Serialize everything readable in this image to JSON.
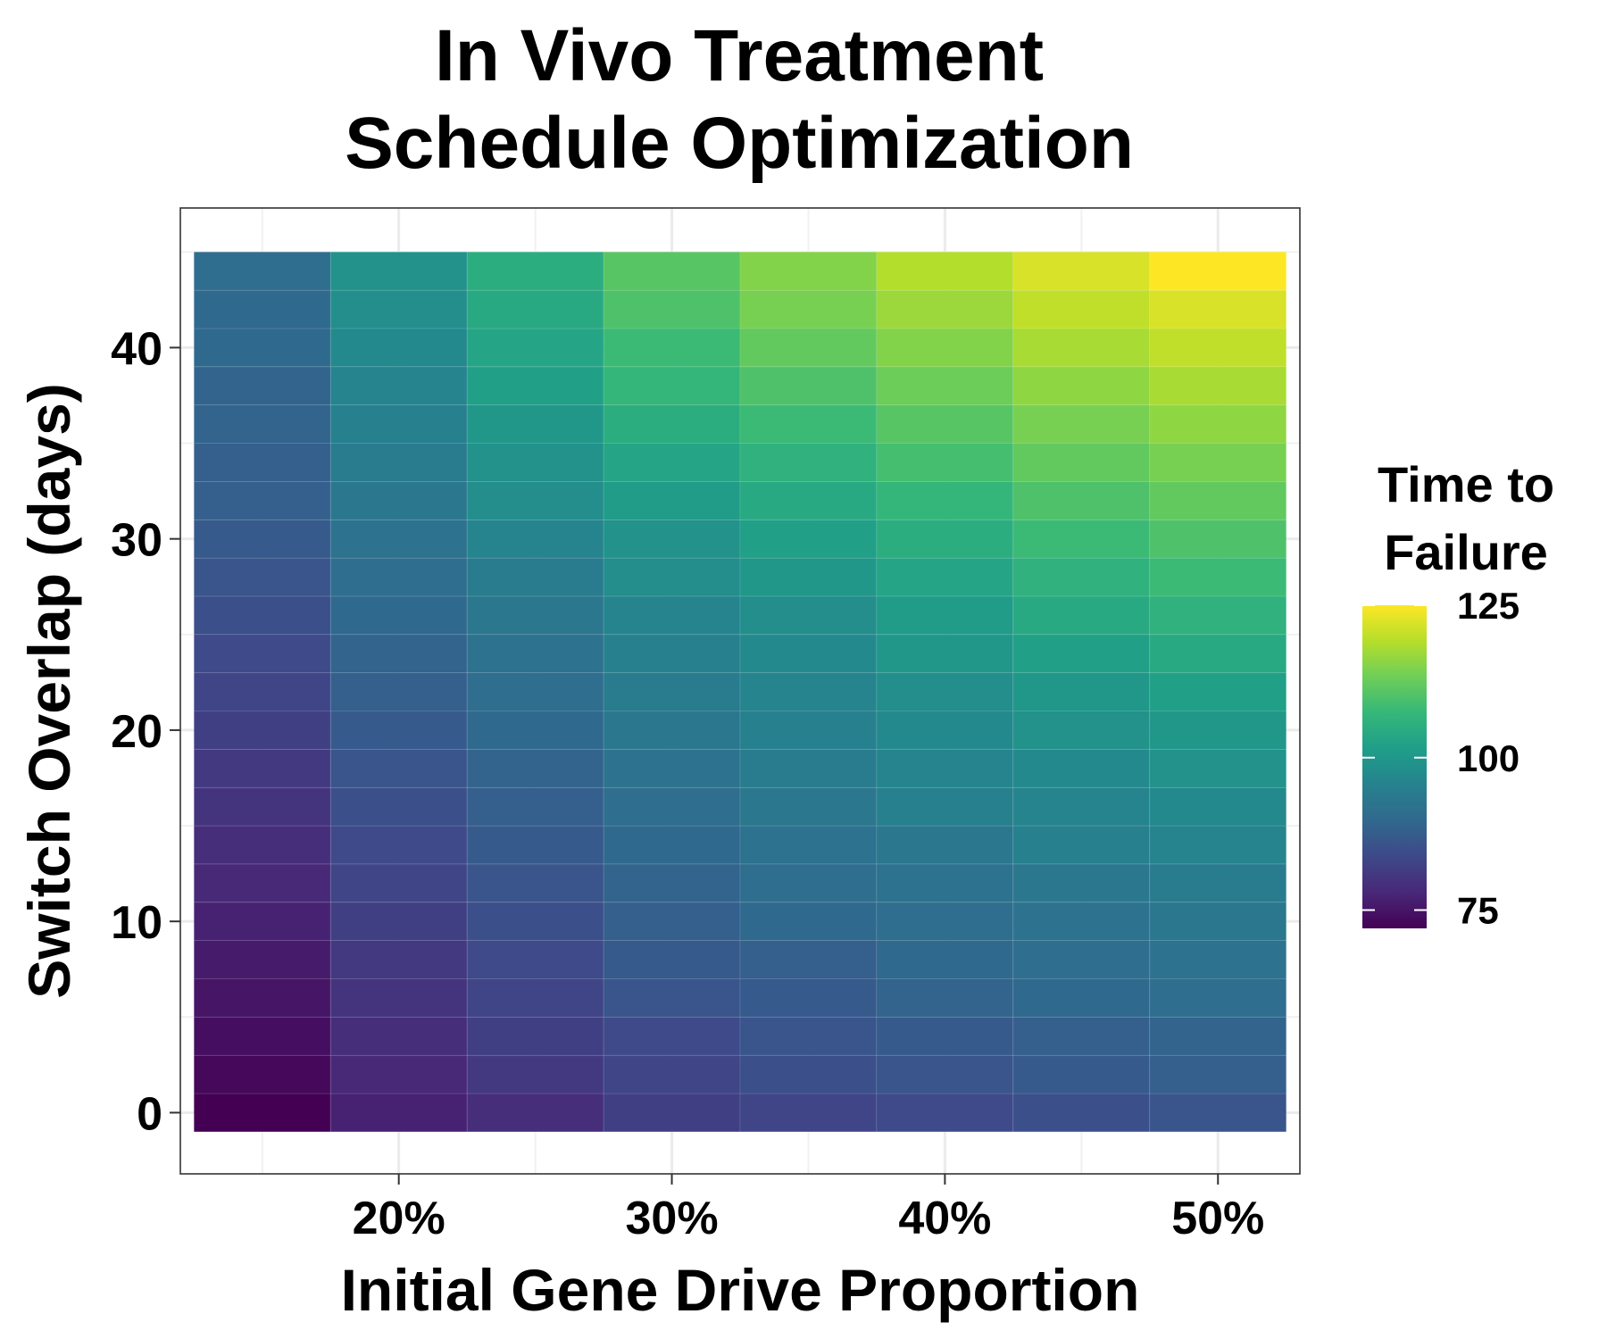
{
  "chart_data": {
    "type": "heatmap",
    "title": [
      "In Vivo Treatment",
      "Schedule Optimization"
    ],
    "xlabel": "Initial Gene Drive Proportion",
    "ylabel": "Switch Overlap (days)",
    "x": [
      0.15,
      0.2,
      0.25,
      0.3,
      0.35,
      0.4,
      0.45,
      0.5
    ],
    "y": [
      0,
      2,
      4,
      6,
      8,
      10,
      12,
      14,
      16,
      18,
      20,
      22,
      24,
      26,
      28,
      30,
      32,
      34,
      36,
      38,
      40,
      42,
      44
    ],
    "xlim": [
      0.12,
      0.53
    ],
    "ylim": [
      -3.2,
      47.3
    ],
    "x_ticks": [
      {
        "value": 0.2,
        "label": "20%"
      },
      {
        "value": 0.3,
        "label": "30%"
      },
      {
        "value": 0.4,
        "label": "40%"
      },
      {
        "value": 0.5,
        "label": "50%"
      }
    ],
    "y_ticks": [
      {
        "value": 0,
        "label": "0"
      },
      {
        "value": 10,
        "label": "10"
      },
      {
        "value": 20,
        "label": "20"
      },
      {
        "value": 30,
        "label": "30"
      },
      {
        "value": 40,
        "label": "40"
      }
    ],
    "z": [
      [
        72,
        77,
        79,
        82,
        83,
        84,
        85,
        86
      ],
      [
        73,
        78,
        81,
        83,
        85,
        86,
        87,
        88
      ],
      [
        74,
        79,
        82,
        84,
        86,
        87,
        88,
        89
      ],
      [
        75,
        80,
        83,
        86,
        87,
        89,
        90,
        91
      ],
      [
        76,
        81,
        84,
        87,
        88,
        90,
        91,
        92
      ],
      [
        77,
        82,
        85,
        88,
        90,
        91,
        92,
        93
      ],
      [
        78,
        83,
        86,
        89,
        91,
        92,
        93,
        94
      ],
      [
        79,
        84,
        87,
        90,
        92,
        93,
        95,
        96
      ],
      [
        80,
        85,
        88,
        91,
        93,
        95,
        96,
        97
      ],
      [
        81,
        86,
        89,
        92,
        94,
        96,
        97,
        99
      ],
      [
        82,
        87,
        90,
        93,
        95,
        97,
        99,
        100
      ],
      [
        83,
        88,
        91,
        94,
        96,
        98,
        100,
        102
      ],
      [
        84,
        89,
        92,
        95,
        97,
        100,
        102,
        104
      ],
      [
        85,
        90,
        93,
        96,
        98,
        101,
        104,
        106
      ],
      [
        86,
        91,
        94,
        98,
        100,
        103,
        106,
        108
      ],
      [
        87,
        92,
        96,
        99,
        102,
        105,
        108,
        110
      ],
      [
        88,
        93,
        98,
        101,
        104,
        107,
        110,
        112
      ],
      [
        88,
        94,
        99,
        103,
        106,
        109,
        112,
        114
      ],
      [
        89,
        95,
        100,
        105,
        108,
        111,
        114,
        116
      ],
      [
        89,
        96,
        102,
        107,
        110,
        113,
        116,
        118
      ],
      [
        90,
        97,
        103,
        108,
        112,
        115,
        118,
        120
      ],
      [
        90,
        98,
        104,
        110,
        114,
        117,
        120,
        122
      ],
      [
        91,
        99,
        105,
        111,
        115,
        119,
        122,
        125
      ]
    ],
    "colorbar": {
      "title": [
        "Time to",
        "Failure"
      ],
      "range": [
        72,
        125
      ],
      "ticks": [
        {
          "value": 75,
          "label": "75"
        },
        {
          "value": 100,
          "label": "100"
        },
        {
          "value": 125,
          "label": "125"
        }
      ],
      "palette": "viridis"
    },
    "grid": true,
    "legend_position": "right"
  }
}
